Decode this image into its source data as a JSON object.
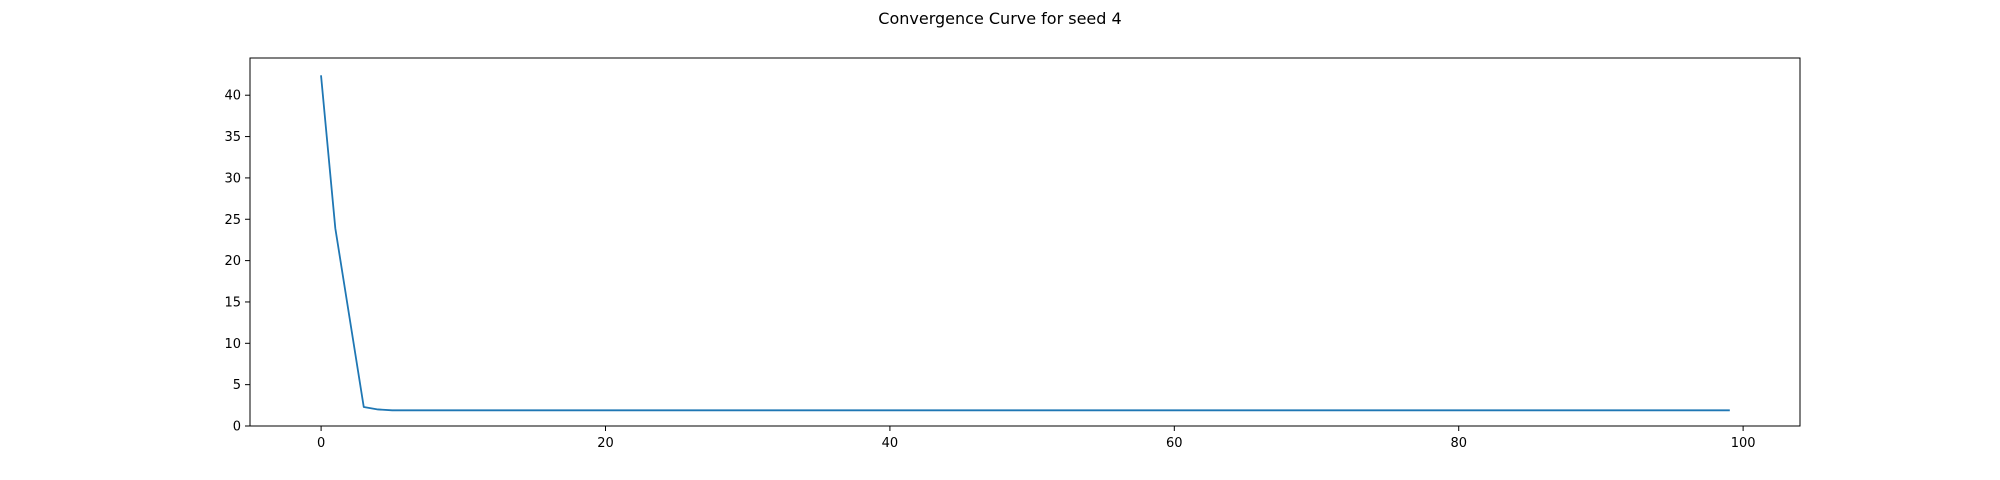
{
  "chart_data": {
    "type": "line",
    "title": "Convergence Curve for seed 4",
    "xlabel": "",
    "ylabel": "",
    "xlim": [
      -5,
      104
    ],
    "ylim": [
      0,
      44.5
    ],
    "xticks": [
      0,
      20,
      40,
      60,
      80,
      100
    ],
    "yticks": [
      0,
      5,
      10,
      15,
      20,
      25,
      30,
      35,
      40
    ],
    "grid": false,
    "legend": "none",
    "series": [
      {
        "color": "#1f77b4",
        "x": [
          0,
          1,
          2,
          3,
          4,
          5,
          6,
          7,
          8,
          9,
          10,
          11,
          12,
          13,
          14,
          15,
          16,
          17,
          18,
          19,
          20,
          21,
          22,
          23,
          24,
          25,
          26,
          27,
          28,
          29,
          30,
          31,
          32,
          33,
          34,
          35,
          36,
          37,
          38,
          39,
          40,
          41,
          42,
          43,
          44,
          45,
          46,
          47,
          48,
          49,
          50,
          51,
          52,
          53,
          54,
          55,
          56,
          57,
          58,
          59,
          60,
          61,
          62,
          63,
          64,
          65,
          66,
          67,
          68,
          69,
          70,
          71,
          72,
          73,
          74,
          75,
          76,
          77,
          78,
          79,
          80,
          81,
          82,
          83,
          84,
          85,
          86,
          87,
          88,
          89,
          90,
          91,
          92,
          93,
          94,
          95,
          96,
          97,
          98,
          99
        ],
        "y": [
          42.3,
          23.9,
          13.1,
          2.3,
          2.0,
          1.9,
          1.9,
          1.9,
          1.9,
          1.9,
          1.9,
          1.9,
          1.9,
          1.9,
          1.9,
          1.9,
          1.9,
          1.9,
          1.9,
          1.9,
          1.9,
          1.9,
          1.9,
          1.9,
          1.9,
          1.9,
          1.9,
          1.9,
          1.9,
          1.9,
          1.9,
          1.9,
          1.9,
          1.9,
          1.9,
          1.9,
          1.9,
          1.9,
          1.9,
          1.9,
          1.9,
          1.9,
          1.9,
          1.9,
          1.9,
          1.9,
          1.9,
          1.9,
          1.9,
          1.9,
          1.9,
          1.9,
          1.9,
          1.9,
          1.9,
          1.9,
          1.9,
          1.9,
          1.9,
          1.9,
          1.9,
          1.9,
          1.9,
          1.9,
          1.9,
          1.9,
          1.9,
          1.9,
          1.9,
          1.9,
          1.9,
          1.9,
          1.9,
          1.9,
          1.9,
          1.9,
          1.9,
          1.9,
          1.9,
          1.9,
          1.9,
          1.9,
          1.9,
          1.9,
          1.9,
          1.9,
          1.9,
          1.9,
          1.9,
          1.9,
          1.9,
          1.9,
          1.9,
          1.9,
          1.9,
          1.9,
          1.9,
          1.9,
          1.9,
          1.9
        ]
      }
    ]
  }
}
